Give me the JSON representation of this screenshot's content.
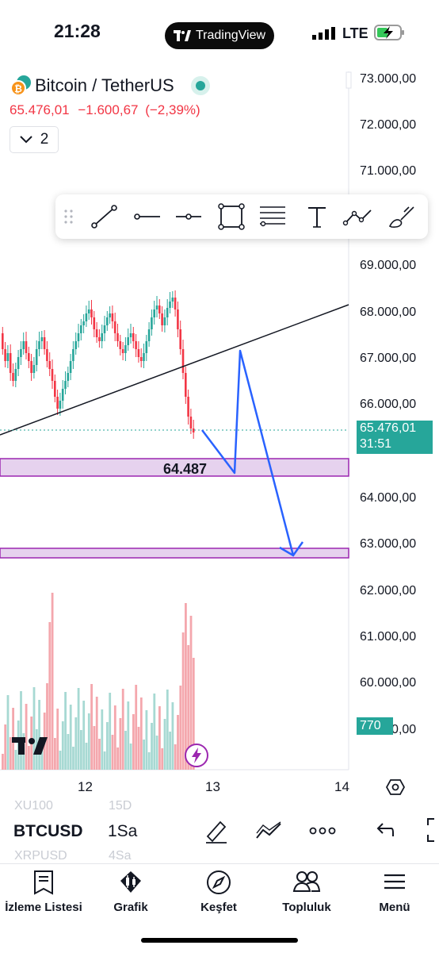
{
  "status": {
    "time": "21:28",
    "app_pill": "TradingView",
    "network": "LTE"
  },
  "header": {
    "title": "Bitcoin / TetherUS",
    "price": "65.476,01",
    "change": "−1.600,67",
    "change_pct": "(−2,39%)",
    "layers_count": "2"
  },
  "y_axis": {
    "ticks": [
      "73.000,00",
      "72.000,00",
      "71.000,00",
      "69.000,00",
      "68.000,00",
      "67.000,00",
      "66.000,00",
      "64.000,00",
      "63.000,00",
      "62.000,00",
      "61.000,00",
      "60.000,00",
      "59.000,00"
    ],
    "last_price_label": "65.476,01",
    "countdown": "31:51",
    "volume_label": "770"
  },
  "x_axis": {
    "ticks": [
      "12",
      "13",
      "14"
    ]
  },
  "annotations": {
    "support_label": "64.487"
  },
  "drawing_tools": [
    "trend-line-icon",
    "horizontal-ray-icon",
    "horizontal-line-icon",
    "rectangle-icon",
    "fib-retracement-icon",
    "text-tool-icon",
    "path-icon",
    "brush-icon"
  ],
  "bottom_bar": {
    "symbol": "BTCUSD",
    "interval": "1Sa",
    "ghost_symbols": [
      "XU100",
      "XRPUSD"
    ],
    "ghost_intervals": [
      "15D",
      "4Sa"
    ]
  },
  "tabs": [
    {
      "label": "İzleme Listesi",
      "icon": "watchlist-icon"
    },
    {
      "label": "Grafik",
      "icon": "chart-icon"
    },
    {
      "label": "Keşfet",
      "icon": "compass-icon"
    },
    {
      "label": "Topluluk",
      "icon": "community-icon"
    },
    {
      "label": "Menü",
      "icon": "menu-icon"
    }
  ],
  "colors": {
    "up": "#26a69a",
    "down": "#f23645",
    "accent": "#2962ff",
    "zone": "#9c27b0"
  }
}
